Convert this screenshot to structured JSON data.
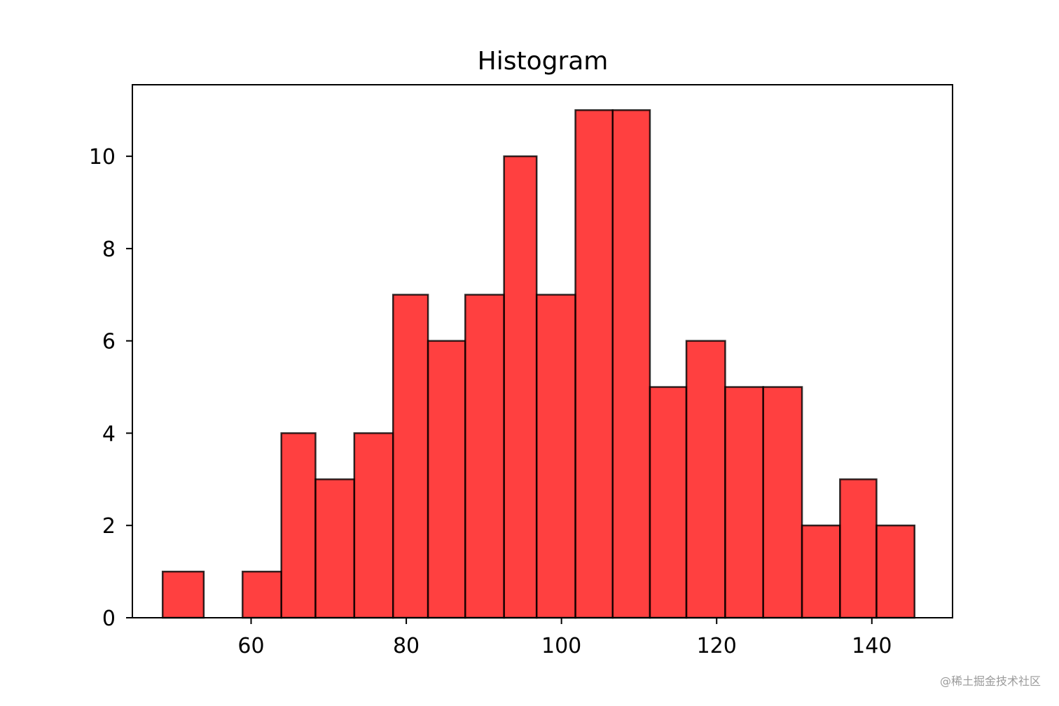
{
  "chart_data": {
    "type": "bar",
    "title": "Histogram",
    "xlabel": "",
    "ylabel": "",
    "bin_edges": [
      48.6,
      53.9,
      58.9,
      63.9,
      68.3,
      73.3,
      78.3,
      82.8,
      87.6,
      92.6,
      96.8,
      101.8,
      106.6,
      111.4,
      116.1,
      121.1,
      126.0,
      131.0,
      135.9,
      140.6,
      145.5
    ],
    "values": [
      1,
      0,
      1,
      4,
      3,
      4,
      7,
      6,
      7,
      10,
      7,
      11,
      11,
      5,
      6,
      5,
      5,
      2,
      3,
      2
    ],
    "xlim": [
      44.7,
      150.4
    ],
    "ylim": [
      0,
      11.55
    ],
    "xticks": [
      60,
      80,
      100,
      120,
      140
    ],
    "yticks": [
      0,
      2,
      4,
      6,
      8,
      10
    ],
    "grid": false,
    "bar_color": "#ff0000",
    "bar_alpha": 0.75,
    "edge_color": "#000000"
  },
  "watermark": "@稀土掘金技术社区"
}
